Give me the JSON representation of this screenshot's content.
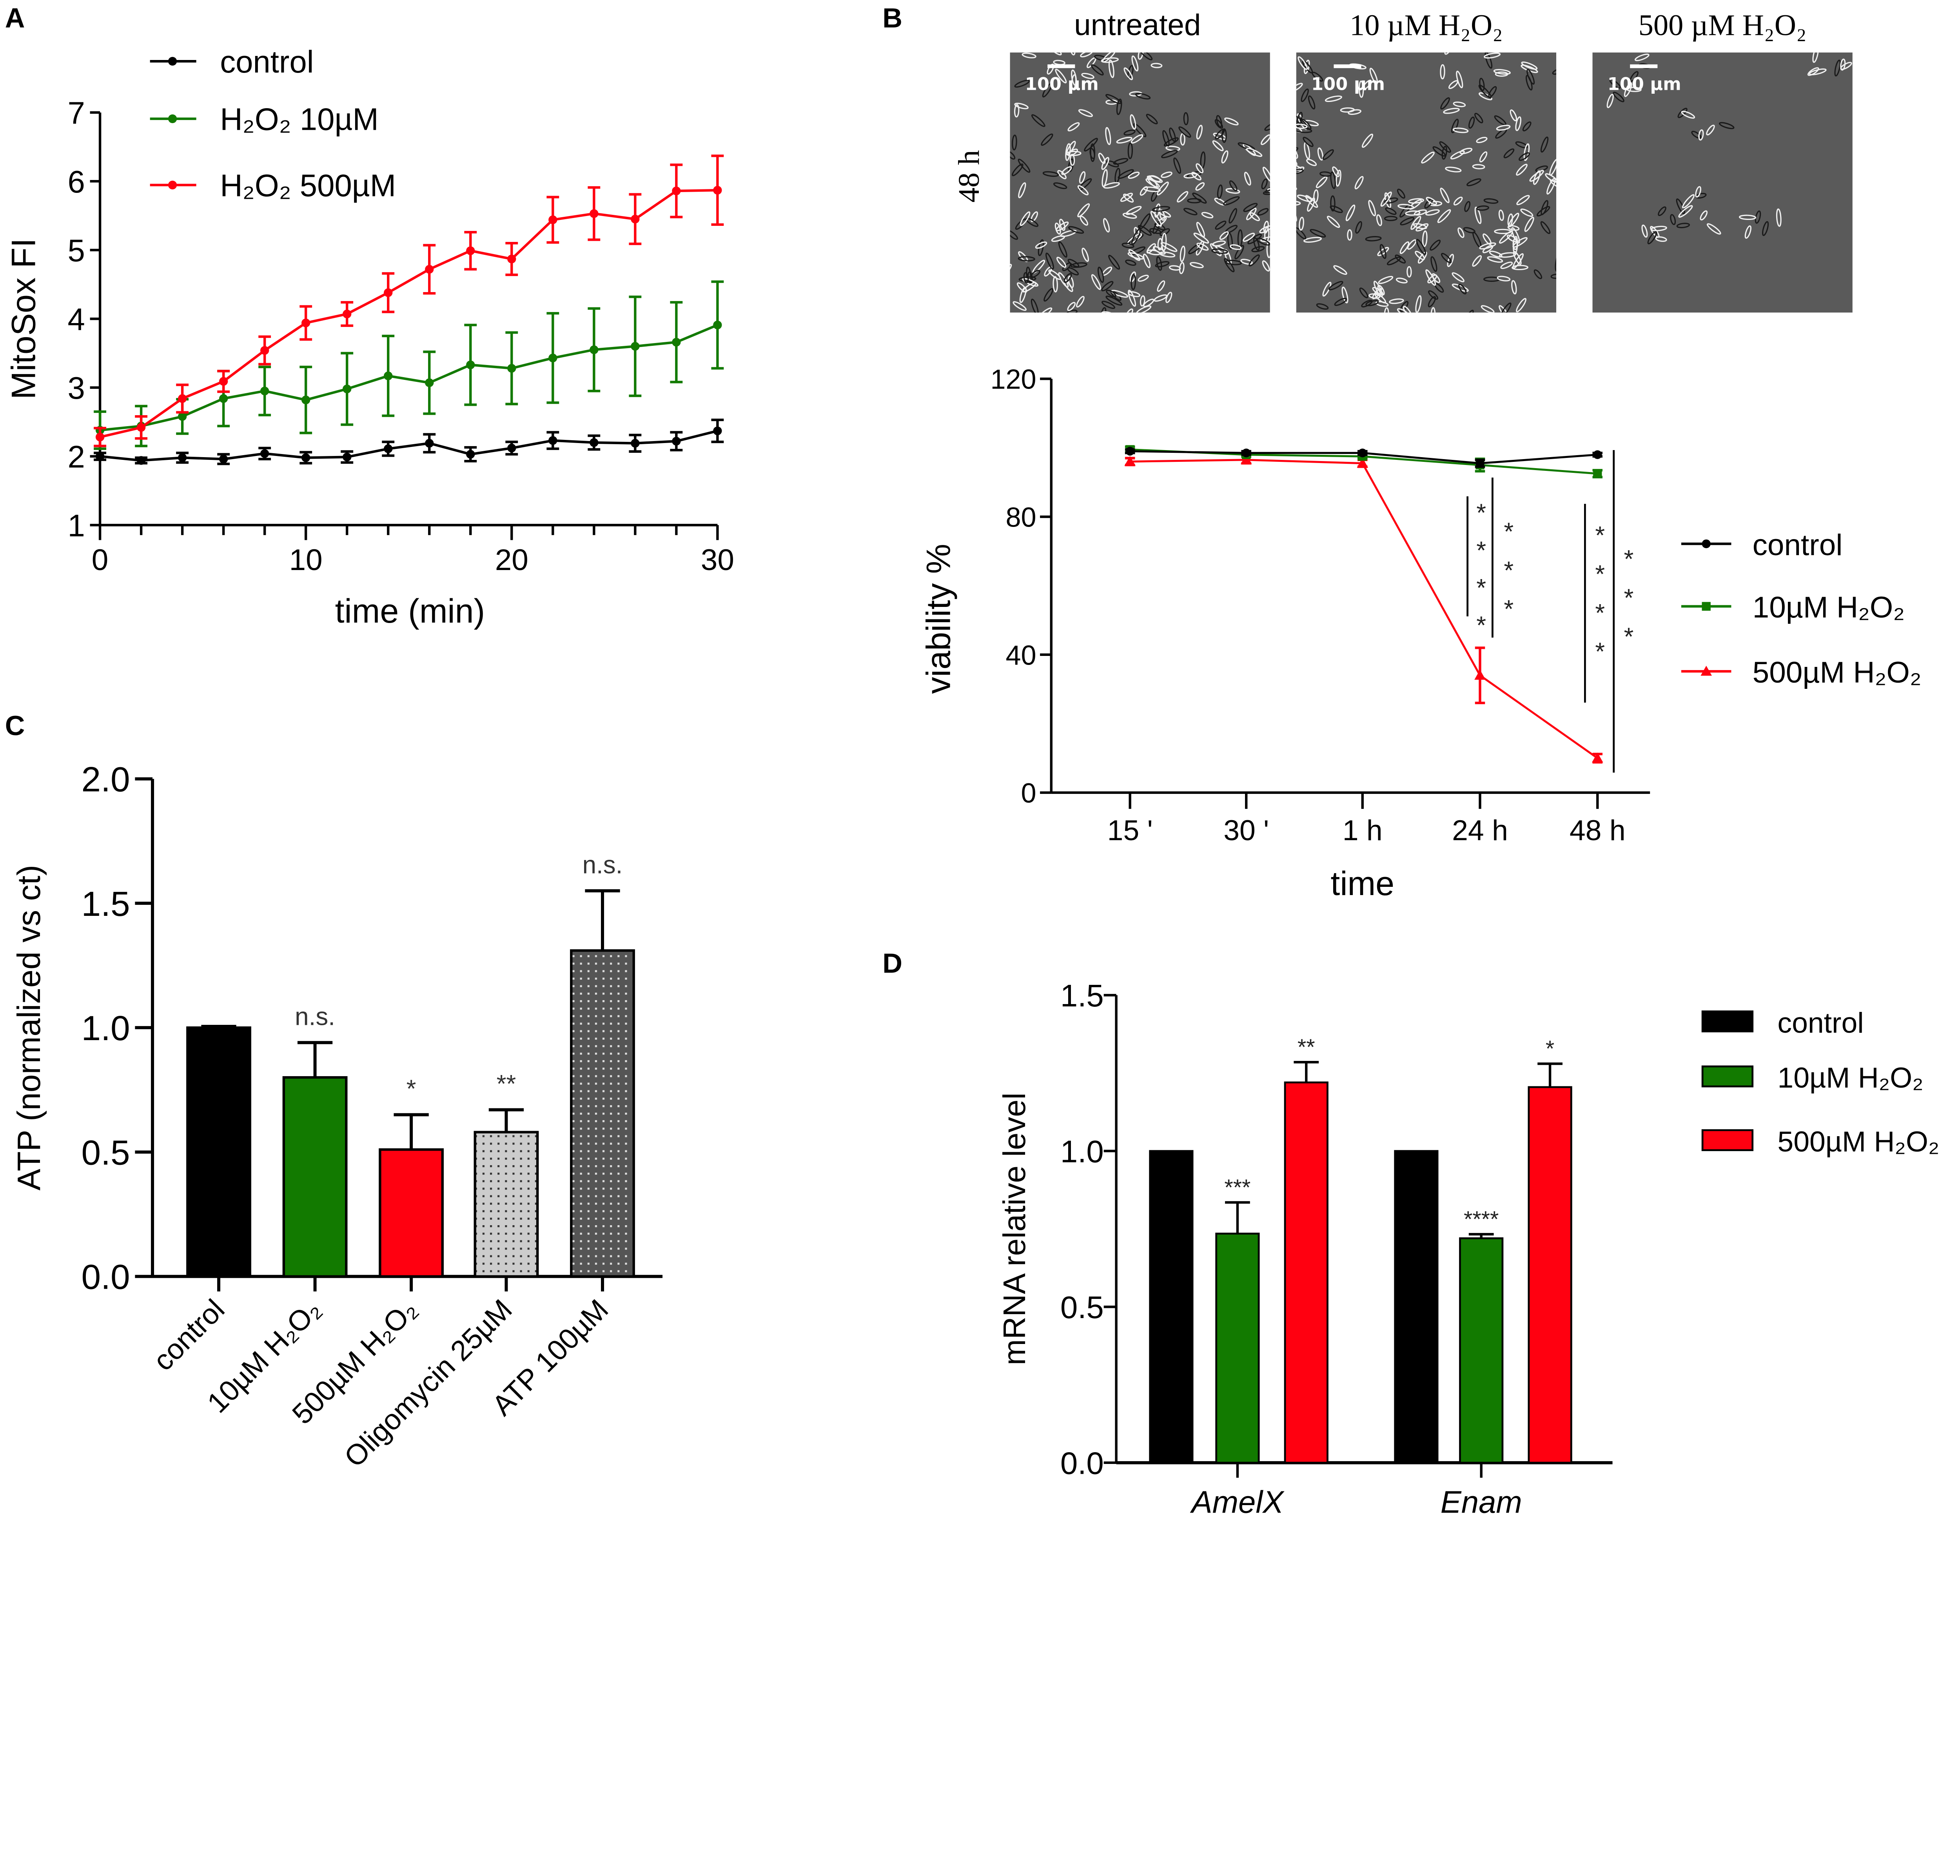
{
  "colors": {
    "control": "#000000",
    "h2o2_10": "#127a00",
    "h2o2_500": "#ff0010",
    "oligo": "#cccccc",
    "atp": "#555555",
    "micro_bg": "#5a5a5a"
  },
  "panel_labels": [
    "A",
    "B",
    "C",
    "D"
  ],
  "micrographs": {
    "row_label": "48 h",
    "scale_bar_label": "100 µm",
    "columns": [
      "untreated",
      "10 µM H₂O₂",
      "500 µM H₂O₂"
    ]
  },
  "chart_data": [
    {
      "id": "A",
      "type": "line",
      "xlabel": "time (min)",
      "ylabel": "MitoSox FI",
      "xlim": [
        0,
        30
      ],
      "ylim": [
        1,
        7
      ],
      "xticks": [
        "0",
        "10",
        "20",
        "30"
      ],
      "yticks": [
        "1",
        "2",
        "3",
        "4",
        "5",
        "6",
        "7"
      ],
      "legend_position": "top-left",
      "x": [
        0,
        2,
        4,
        6,
        8,
        10,
        12,
        14,
        16,
        18,
        20,
        22,
        24,
        26,
        28,
        30
      ],
      "series": [
        {
          "name": "control",
          "color": "#000000",
          "values": [
            2.0,
            1.94,
            1.98,
            1.96,
            2.04,
            1.98,
            1.99,
            2.11,
            2.19,
            2.03,
            2.12,
            2.23,
            2.2,
            2.19,
            2.22,
            2.37
          ],
          "errors": [
            0.05,
            0.04,
            0.07,
            0.07,
            0.08,
            0.08,
            0.08,
            0.1,
            0.13,
            0.1,
            0.09,
            0.12,
            0.1,
            0.12,
            0.13,
            0.16
          ]
        },
        {
          "name": "H₂O₂ 10µM",
          "color": "#127a00",
          "values": [
            2.38,
            2.44,
            2.58,
            2.84,
            2.95,
            2.82,
            2.98,
            3.17,
            3.07,
            3.33,
            3.28,
            3.43,
            3.55,
            3.6,
            3.66,
            3.91
          ],
          "errors": [
            0.27,
            0.29,
            0.25,
            0.4,
            0.35,
            0.48,
            0.52,
            0.58,
            0.45,
            0.58,
            0.52,
            0.65,
            0.6,
            0.72,
            0.58,
            0.63
          ]
        },
        {
          "name": "H₂O₂ 500µM",
          "color": "#ff0010",
          "values": [
            2.28,
            2.42,
            2.84,
            3.09,
            3.54,
            3.94,
            4.07,
            4.38,
            4.72,
            4.99,
            4.87,
            5.44,
            5.53,
            5.45,
            5.86,
            5.87
          ],
          "errors": [
            0.13,
            0.16,
            0.2,
            0.15,
            0.2,
            0.24,
            0.17,
            0.28,
            0.35,
            0.27,
            0.23,
            0.33,
            0.38,
            0.36,
            0.38,
            0.5
          ]
        }
      ]
    },
    {
      "id": "B",
      "type": "line",
      "xlabel": "time",
      "ylabel": "viability %",
      "ylim": [
        0,
        120
      ],
      "yticks": [
        "0",
        "40",
        "80",
        "120"
      ],
      "categories": [
        "15 '",
        "30 '",
        "1 h",
        "24 h",
        "48 h"
      ],
      "legend_position": "right",
      "series": [
        {
          "name": "control",
          "color": "#000000",
          "marker": "circle",
          "values": [
            99,
            98.5,
            98.5,
            95.5,
            98
          ],
          "errors": [
            0.5,
            0.5,
            0.5,
            1,
            0.5
          ]
        },
        {
          "name": "10µM H₂O₂",
          "color": "#127a00",
          "marker": "square",
          "values": [
            99.5,
            98,
            97.5,
            95,
            92.5
          ],
          "errors": [
            0.8,
            0.6,
            0.6,
            1.8,
            1
          ]
        },
        {
          "name": "500µM H₂O₂",
          "color": "#ff0010",
          "marker": "triangle",
          "values": [
            96,
            96.5,
            95.5,
            34,
            10
          ],
          "errors": [
            1,
            1,
            1,
            8,
            1.2
          ]
        }
      ],
      "annotations": [
        {
          "category": "24 h",
          "comparison": "10µM vs 500µM",
          "label": "****"
        },
        {
          "category": "24 h",
          "comparison": "control vs 500µM",
          "label": "***"
        },
        {
          "category": "48 h",
          "comparison": "10µM vs 500µM",
          "label": "****"
        },
        {
          "category": "48 h",
          "comparison": "control vs 500µM",
          "label": "***"
        }
      ]
    },
    {
      "id": "C",
      "type": "bar",
      "ylabel": "ATP (normalized vs ct)",
      "ylim": [
        0,
        2
      ],
      "yticks": [
        "0.0",
        "0.5",
        "1.0",
        "1.5",
        "2.0"
      ],
      "categories": [
        "control",
        "10µM H₂O₂",
        "500µM H₂O₂",
        "Oligomycin 25µM",
        "ATP 100µM"
      ],
      "values": [
        1.0,
        0.8,
        0.51,
        0.58,
        1.31
      ],
      "errors": [
        0.005,
        0.14,
        0.14,
        0.09,
        0.24
      ],
      "significance": [
        "",
        "n.s.",
        "*",
        "**",
        "n.s."
      ],
      "fills": [
        "#000000",
        "#127a00",
        "#ff0010",
        "#cccccc",
        "#555555"
      ],
      "patterns": [
        "solid",
        "solid",
        "solid",
        "dots",
        "dots"
      ]
    },
    {
      "id": "D",
      "type": "bar",
      "ylabel": "mRNA relative level",
      "ylim": [
        0,
        1.5
      ],
      "yticks": [
        "0.0",
        "0.5",
        "1.0",
        "1.5"
      ],
      "categories": [
        "AmelX",
        "Enam"
      ],
      "legend_position": "right",
      "series": [
        {
          "name": "control",
          "color": "#000000",
          "values": [
            1.0,
            1.0
          ],
          "errors": [
            0,
            0
          ],
          "significance": [
            "",
            ""
          ]
        },
        {
          "name": "10µM H₂O₂",
          "color": "#127a00",
          "values": [
            0.735,
            0.72
          ],
          "errors": [
            0.1,
            0.013
          ],
          "significance": [
            "***",
            "****"
          ]
        },
        {
          "name": "500µM H₂O₂",
          "color": "#ff0010",
          "values": [
            1.22,
            1.205
          ],
          "errors": [
            0.065,
            0.075
          ],
          "significance": [
            "**",
            "*"
          ]
        }
      ]
    }
  ]
}
